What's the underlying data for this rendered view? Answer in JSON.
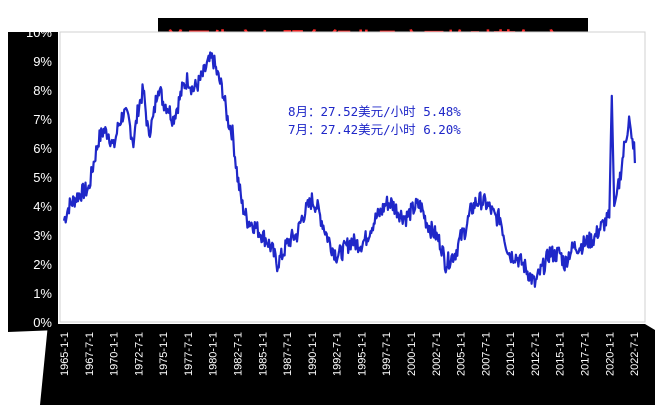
{
  "title": "美国生产与服务行业月度平均时薪年率",
  "annotations": [
    "8月：27.52美元/小时    5.48%",
    "7月：27.42美元/小时    6.20%"
  ],
  "colors": {
    "line": "#1f27c8",
    "panel": "#000000",
    "title": "#ff2a2a",
    "annotation": "#1f27c8",
    "grid": "#ffffff"
  },
  "chart_data": {
    "type": "line",
    "title": "美国生产与服务行业月度平均时薪年率",
    "xlabel": "",
    "ylabel": "",
    "ylim": [
      0,
      10
    ],
    "grid": false,
    "legend": "none",
    "y_ticks": [
      "0%",
      "1%",
      "2%",
      "3%",
      "4%",
      "5%",
      "6%",
      "7%",
      "8%",
      "9%",
      "10%"
    ],
    "x_ticks": [
      "1965-1-1",
      "1967-7-1",
      "1970-1-1",
      "1972-7-1",
      "1975-1-1",
      "1977-7-1",
      "1980-1-1",
      "1982-7-1",
      "1985-1-1",
      "1987-7-1",
      "1990-1-1",
      "1992-7-1",
      "1995-1-1",
      "1997-7-1",
      "2000-1-1",
      "2002-7-1",
      "2005-1-1",
      "2007-7-1",
      "2010-1-1",
      "2012-7-1",
      "2015-1-1",
      "2017-7-1",
      "2020-1-1",
      "2022-7-1"
    ],
    "series": [
      {
        "x": [
          "1965-01",
          "1965-07",
          "1966-01",
          "1966-07",
          "1967-01",
          "1967-07",
          "1968-01",
          "1968-07",
          "1969-01",
          "1969-07",
          "1970-01",
          "1970-07",
          "1971-01",
          "1971-07",
          "1972-01",
          "1972-07",
          "1973-01",
          "1973-07",
          "1974-01",
          "1974-07",
          "1975-01",
          "1975-07",
          "1976-01",
          "1976-07",
          "1977-01",
          "1977-07",
          "1978-01",
          "1978-07",
          "1979-01",
          "1979-07",
          "1980-01",
          "1980-07",
          "1981-01",
          "1981-07",
          "1982-01",
          "1982-07",
          "1983-01",
          "1983-07",
          "1984-01",
          "1984-07",
          "1985-01",
          "1985-07",
          "1986-01",
          "1986-07",
          "1987-01",
          "1987-07",
          "1988-01",
          "1988-07",
          "1989-01",
          "1989-07",
          "1990-01",
          "1990-07",
          "1991-01",
          "1991-07",
          "1992-01",
          "1992-07",
          "1993-01",
          "1993-07",
          "1994-01",
          "1994-07",
          "1995-01",
          "1995-07",
          "1996-01",
          "1996-07",
          "1997-01",
          "1997-07",
          "1998-01",
          "1998-07",
          "1999-01",
          "1999-07",
          "2000-01",
          "2000-07",
          "2001-01",
          "2001-07",
          "2002-01",
          "2002-07",
          "2003-01",
          "2003-07",
          "2004-01",
          "2004-07",
          "2005-01",
          "2005-07",
          "2006-01",
          "2006-07",
          "2007-01",
          "2007-07",
          "2008-01",
          "2008-07",
          "2009-01",
          "2009-07",
          "2010-01",
          "2010-07",
          "2011-01",
          "2011-07",
          "2012-01",
          "2012-07",
          "2013-01",
          "2013-07",
          "2014-01",
          "2014-07",
          "2015-01",
          "2015-07",
          "2016-01",
          "2016-07",
          "2017-01",
          "2017-07",
          "2018-01",
          "2018-07",
          "2019-01",
          "2019-07",
          "2020-01",
          "2020-04",
          "2020-07",
          "2021-01",
          "2021-07",
          "2022-01",
          "2022-04",
          "2022-07",
          "2022-08"
        ],
        "values": [
          3.5,
          4.0,
          4.2,
          4.4,
          4.5,
          4.6,
          5.5,
          6.3,
          6.6,
          6.5,
          6.0,
          6.8,
          7.2,
          7.0,
          6.2,
          7.4,
          8.0,
          6.5,
          7.0,
          8.2,
          7.6,
          7.4,
          7.0,
          7.5,
          8.1,
          8.4,
          8.0,
          8.2,
          8.5,
          8.9,
          9.1,
          8.5,
          8.0,
          7.0,
          6.5,
          5.0,
          4.0,
          3.5,
          3.4,
          3.2,
          3.0,
          2.8,
          2.5,
          2.0,
          2.3,
          2.7,
          2.9,
          3.0,
          3.6,
          3.9,
          4.2,
          4.0,
          3.5,
          3.0,
          2.6,
          2.3,
          2.4,
          2.6,
          2.8,
          2.7,
          2.7,
          2.9,
          3.3,
          3.6,
          3.8,
          4.1,
          4.1,
          3.9,
          3.7,
          3.6,
          3.8,
          4.0,
          4.0,
          3.5,
          3.2,
          3.0,
          2.7,
          2.0,
          2.2,
          2.4,
          2.9,
          3.2,
          3.8,
          4.1,
          4.2,
          4.1,
          3.9,
          3.6,
          3.6,
          2.8,
          2.3,
          2.3,
          2.1,
          1.9,
          1.6,
          1.3,
          1.7,
          2.0,
          2.4,
          2.3,
          2.4,
          2.0,
          2.4,
          2.6,
          2.6,
          2.7,
          2.8,
          2.9,
          3.2,
          3.4,
          3.6,
          7.8,
          4.0,
          4.8,
          6.0,
          7.0,
          6.2,
          6.2,
          5.48
        ]
      }
    ]
  }
}
